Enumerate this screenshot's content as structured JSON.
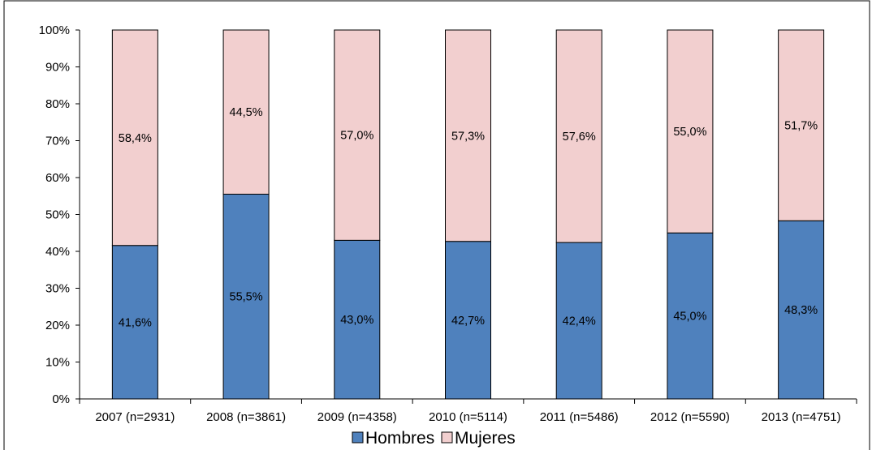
{
  "chart_data": {
    "type": "bar",
    "stacked": true,
    "title": "",
    "xlabel": "",
    "ylabel": "",
    "categories": [
      "2007 (n=2931)",
      "2008 (n=3861)",
      "2009 (n=4358)",
      "2010 (n=5114)",
      "2011 (n=5486)",
      "2012 (n=5590)",
      "2013 (n=4751)"
    ],
    "series": [
      {
        "name": "Hombres",
        "color": "#4f81bd",
        "values": [
          41.6,
          55.5,
          43.0,
          42.7,
          42.4,
          45.0,
          48.3
        ],
        "labels": [
          "41,6%",
          "55,5%",
          "43,0%",
          "42,7%",
          "42,4%",
          "45,0%",
          "48,3%"
        ]
      },
      {
        "name": "Mujeres",
        "color": "#f2cfcf",
        "values": [
          58.4,
          44.5,
          57.0,
          57.3,
          57.6,
          55.0,
          51.7
        ],
        "labels": [
          "58,4%",
          "44,5%",
          "57,0%",
          "57,3%",
          "57,6%",
          "55,0%",
          "51,7%"
        ]
      }
    ],
    "ylim": [
      0,
      100
    ],
    "yticks": [
      "0%",
      "10%",
      "20%",
      "30%",
      "40%",
      "50%",
      "60%",
      "70%",
      "80%",
      "90%",
      "100%"
    ],
    "grid": false,
    "legend": {
      "position": "bottom",
      "entries": [
        "Hombres",
        "Mujeres"
      ]
    }
  }
}
